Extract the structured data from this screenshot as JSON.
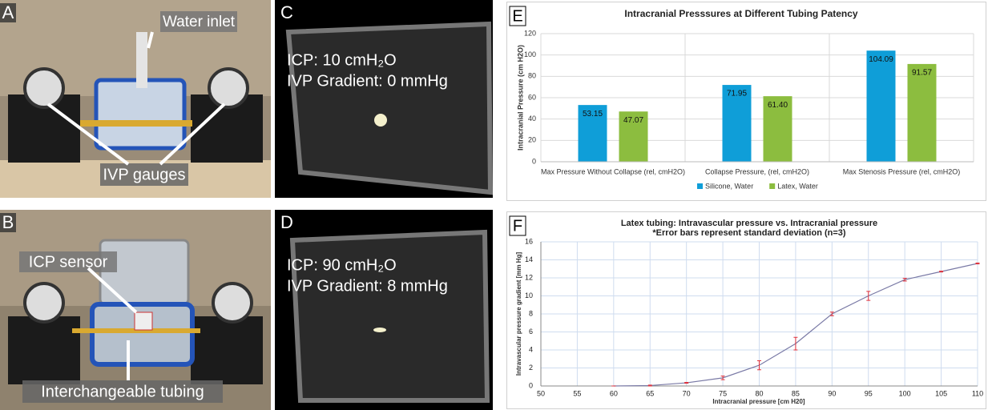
{
  "panels": {
    "a": {
      "letter": "A",
      "labels": [
        "Water inlet",
        "IVP gauges"
      ]
    },
    "b": {
      "letter": "B",
      "labels": [
        "ICP sensor",
        "Interchangeable tubing"
      ]
    },
    "c": {
      "letter": "C",
      "labels": [
        "ICP: 10 cmH₂O",
        "IVP Gradient: 0 mmHg"
      ]
    },
    "d": {
      "letter": "D",
      "labels": [
        "ICP: 90 cmH₂O",
        "IVP Gradient: 8 mmHg"
      ]
    },
    "e": {
      "letter": "E"
    },
    "f": {
      "letter": "F"
    }
  },
  "chart_data": [
    {
      "type": "bar",
      "title": "Intracranial Presssures at Different Tubing Patency",
      "y_label": "Intracranial Pressure (cm H2O)",
      "categories": [
        "Max Pressure Without Collapse (rel, cmH2O)",
        "Collapse Pressure, (rel, cmH2O)",
        "Max Stenosis Pressure (rel, cmH2O)"
      ],
      "series": [
        {
          "name": "Silicone, Water",
          "color": "#0f9ed8",
          "values": [
            53.15,
            71.95,
            104.09
          ]
        },
        {
          "name": "Latex, Water",
          "color": "#8cbd3f",
          "values": [
            47.07,
            61.4,
            91.57
          ],
          "value_labels": [
            "47.07",
            "61.40",
            "91.57"
          ]
        }
      ],
      "ylim": [
        0,
        120
      ],
      "yticks": [
        0,
        20,
        40,
        60,
        80,
        100,
        120
      ],
      "grid": true,
      "legend": "bottom"
    },
    {
      "type": "line",
      "title": "Latex tubing: Intravascular pressure vs. Intracranial pressure",
      "subtitle": "*Error bars represent standard deviation (n=3)",
      "x_label": "Intracranial pressure [cm H20]",
      "y_label": "Intravascular pressure gradient [mm Hg]",
      "x": [
        60,
        65,
        70,
        75,
        80,
        85,
        90,
        95,
        100,
        105,
        110
      ],
      "values": [
        0,
        0.05,
        0.35,
        0.9,
        2.3,
        4.7,
        8.0,
        10.0,
        11.8,
        12.7,
        13.6
      ],
      "errors": [
        0,
        0.05,
        0.05,
        0.2,
        0.5,
        0.7,
        0.2,
        0.5,
        0.15,
        0.05,
        0.05
      ],
      "color": "#7a7aa6",
      "error_color": "#e0303a",
      "xlim": [
        50,
        110
      ],
      "xticks": [
        50,
        55,
        60,
        65,
        70,
        75,
        80,
        85,
        90,
        95,
        100,
        105,
        110
      ],
      "ylim": [
        0,
        16
      ],
      "yticks": [
        0,
        2,
        4,
        6,
        8,
        10,
        12,
        14,
        16
      ],
      "grid": true
    }
  ]
}
